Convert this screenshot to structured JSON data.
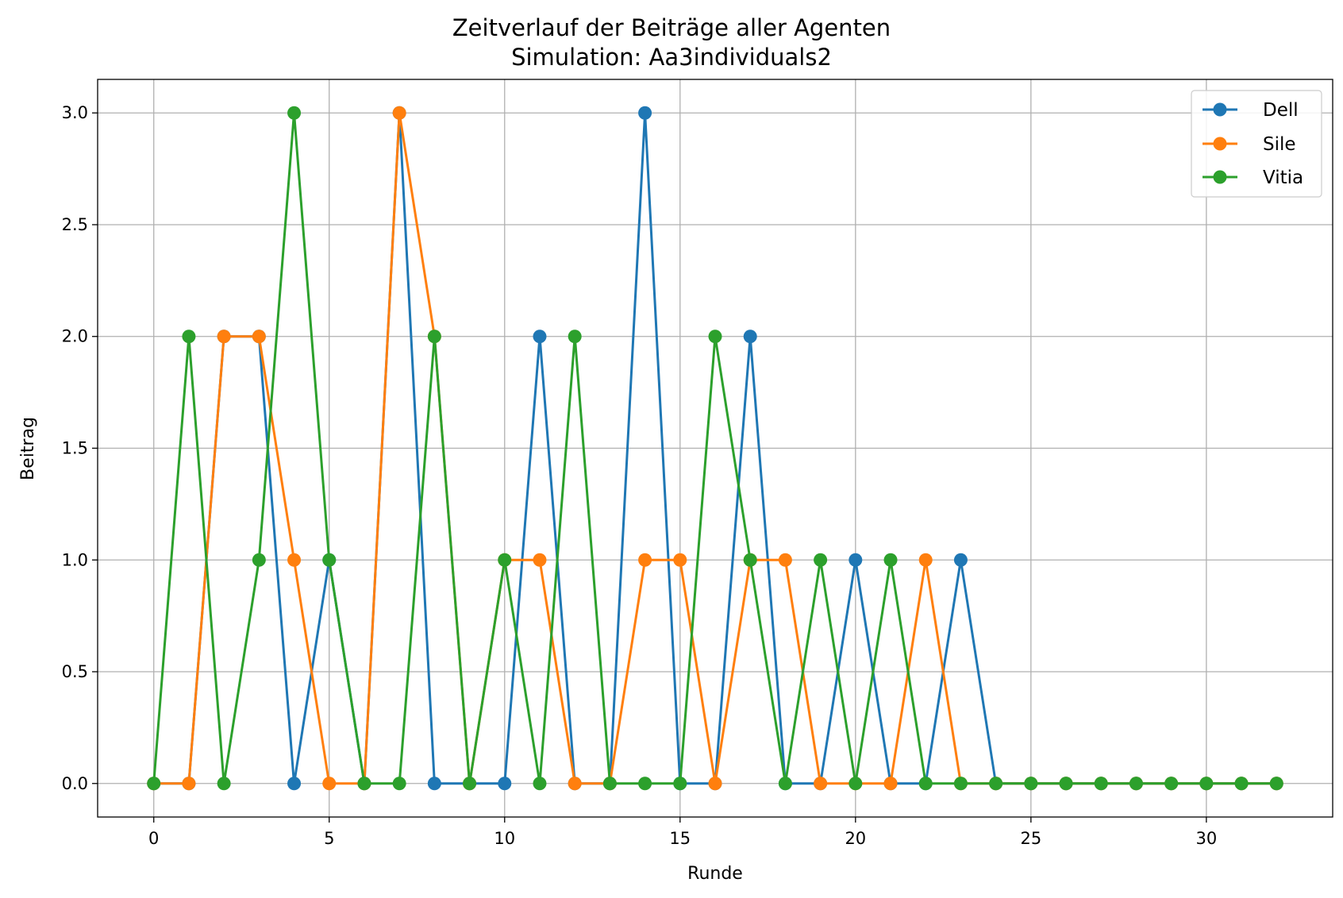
{
  "chart_data": {
    "type": "line",
    "title": "Zeitverlauf der Beiträge aller Agenten",
    "subtitle": "Simulation: Aa3individuals2",
    "xlabel": "Runde",
    "ylabel": "Beitrag",
    "xlim": [
      -1.6,
      33.6
    ],
    "ylim": [
      -0.15,
      3.15
    ],
    "xticks": [
      0,
      5,
      10,
      15,
      20,
      25,
      30
    ],
    "xtick_labels": [
      "0",
      "5",
      "10",
      "15",
      "20",
      "25",
      "30"
    ],
    "yticks": [
      0,
      0.5,
      1,
      1.5,
      2,
      2.5,
      3
    ],
    "ytick_labels": [
      "0.0",
      "0.5",
      "1.0",
      "1.5",
      "2.0",
      "2.5",
      "3.0"
    ],
    "grid": true,
    "legend_position": "top-right",
    "x": [
      0,
      1,
      2,
      3,
      4,
      5,
      6,
      7,
      8,
      9,
      10,
      11,
      12,
      13,
      14,
      15,
      16,
      17,
      18,
      19,
      20,
      21,
      22,
      23,
      24,
      25,
      26,
      27,
      28,
      29,
      30,
      31,
      32
    ],
    "series": [
      {
        "name": "Dell",
        "color": "#1f77b4",
        "values": [
          0,
          0,
          2,
          2,
          0,
          1,
          0,
          3,
          0,
          0,
          0,
          2,
          0,
          0,
          3,
          0,
          0,
          2,
          0,
          0,
          1,
          0,
          0,
          1,
          0,
          0,
          0,
          0,
          0,
          0,
          0,
          0,
          0
        ]
      },
      {
        "name": "Sile",
        "color": "#ff7f0e",
        "values": [
          0,
          0,
          2,
          2,
          1,
          0,
          0,
          3,
          2,
          0,
          1,
          1,
          0,
          0,
          1,
          1,
          0,
          1,
          1,
          0,
          0,
          0,
          1,
          0,
          0,
          0,
          0,
          0,
          0,
          0,
          0,
          0,
          0
        ]
      },
      {
        "name": "Vitia",
        "color": "#2ca02c",
        "values": [
          0,
          2,
          0,
          1,
          3,
          1,
          0,
          0,
          2,
          0,
          1,
          0,
          2,
          0,
          0,
          0,
          2,
          1,
          0,
          1,
          0,
          1,
          0,
          0,
          0,
          0,
          0,
          0,
          0,
          0,
          0,
          0,
          0
        ]
      }
    ]
  }
}
